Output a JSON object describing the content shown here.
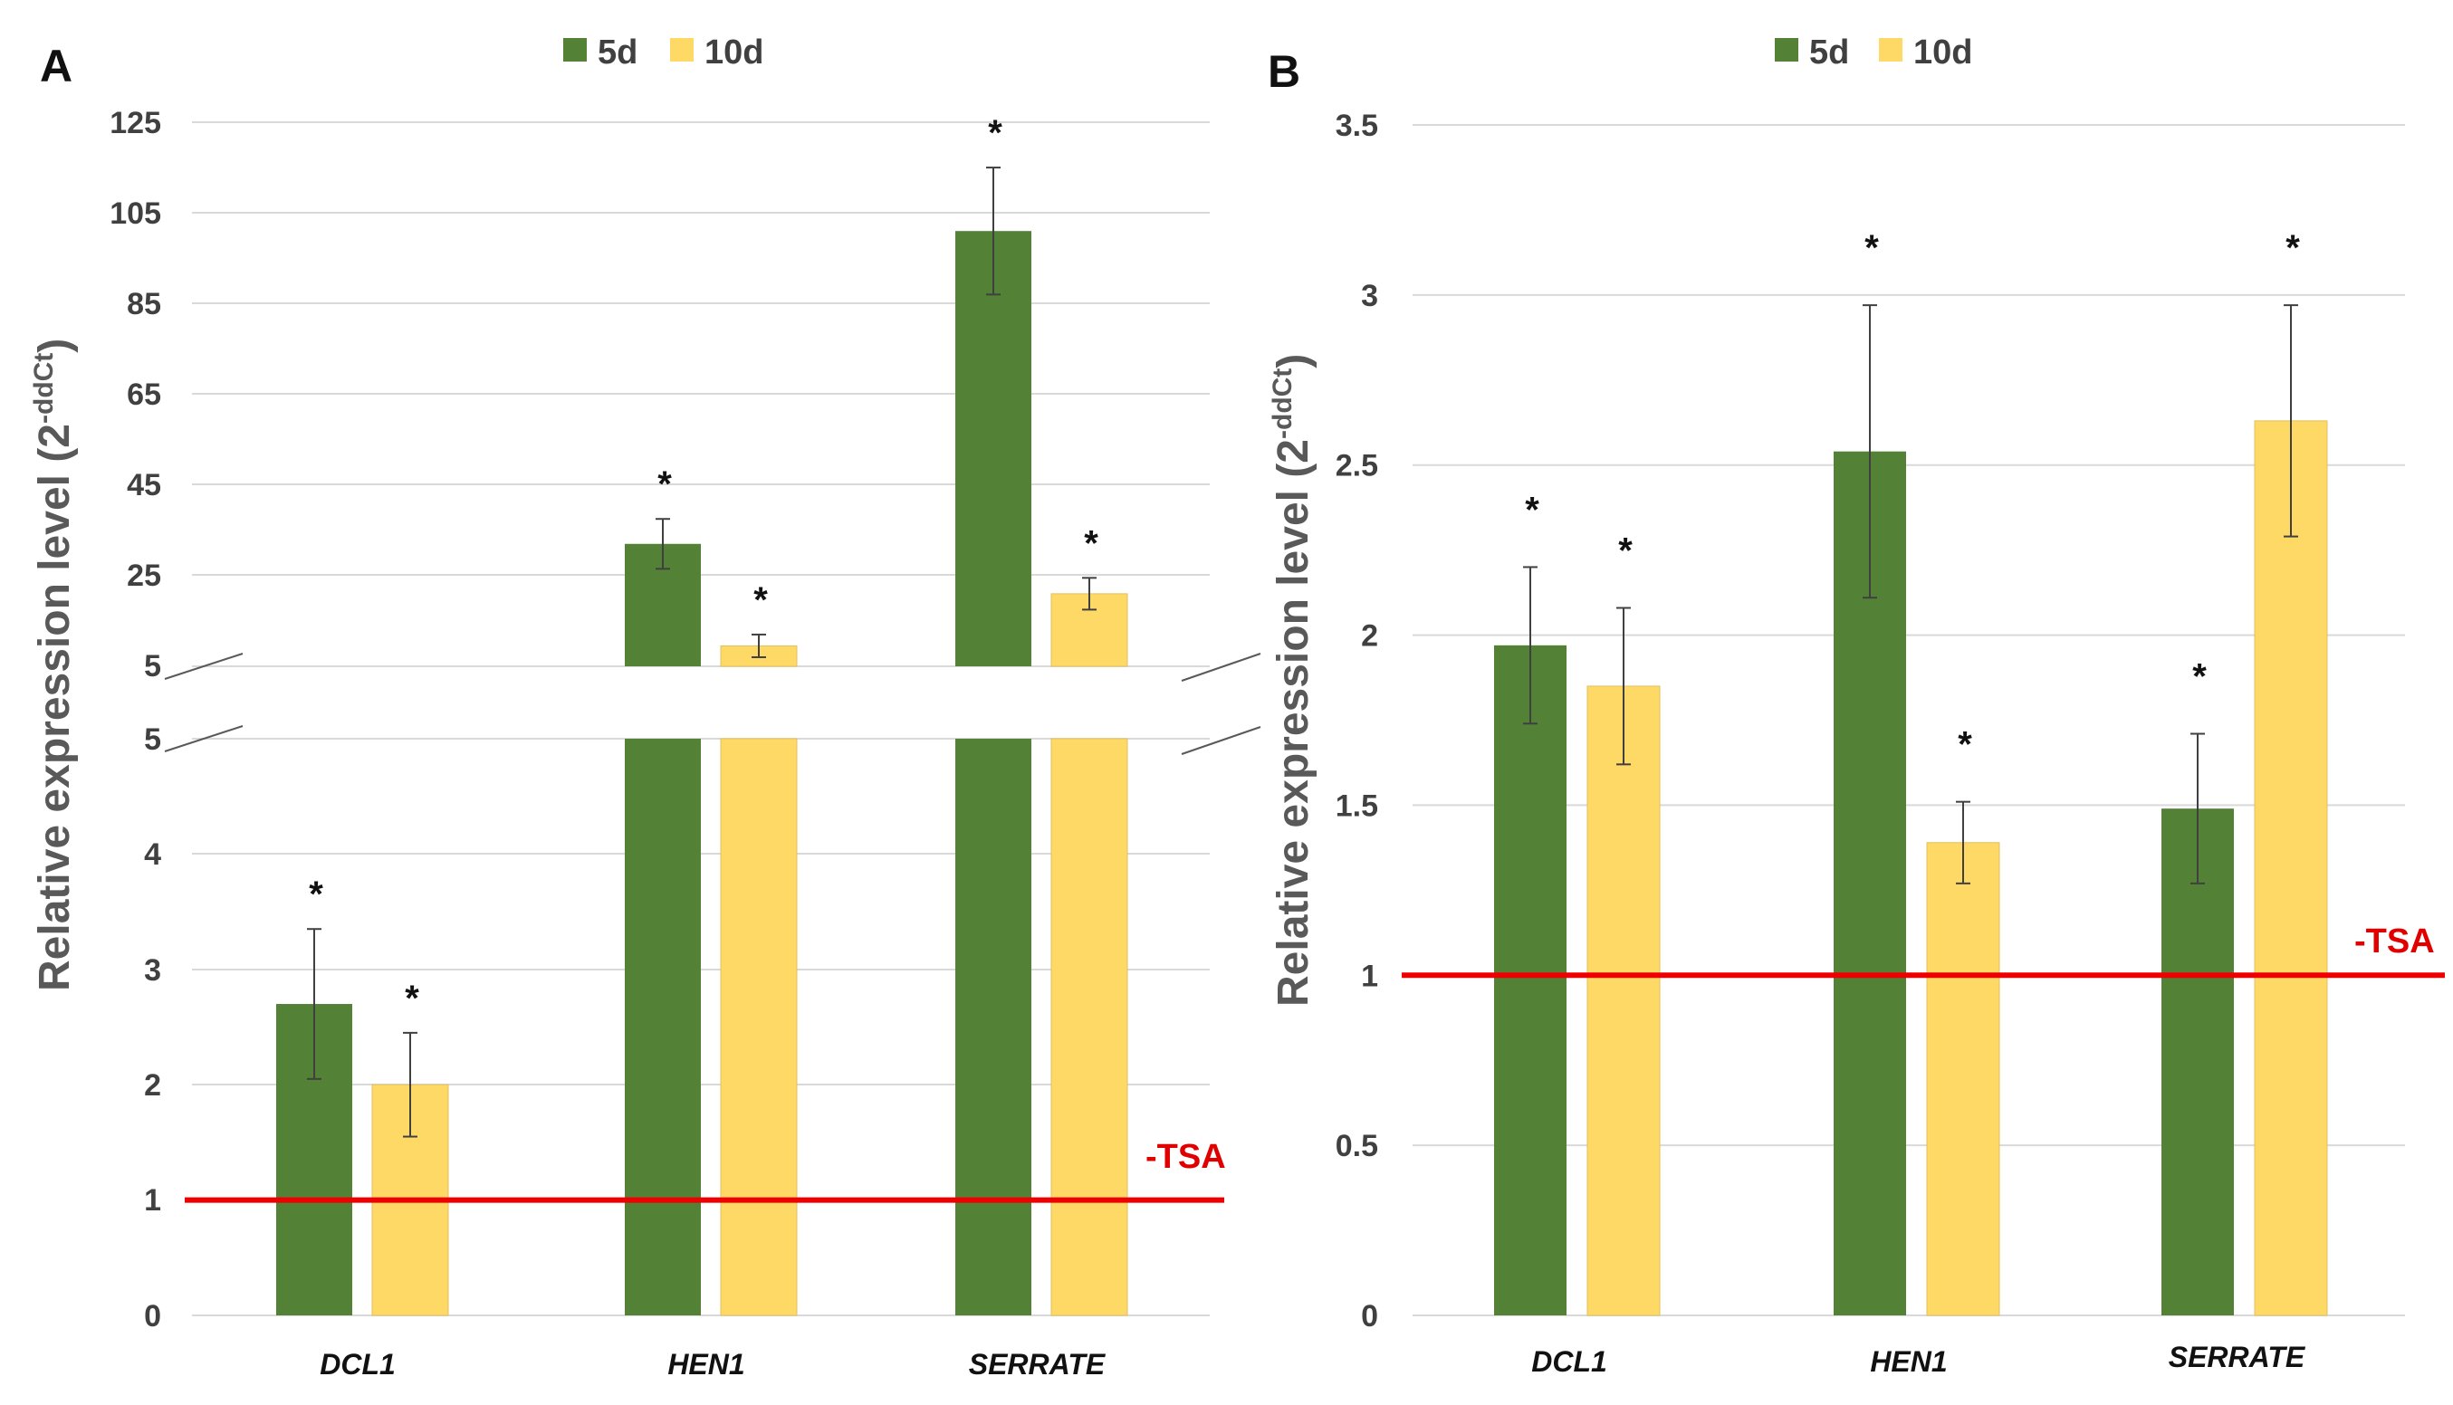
{
  "colors": {
    "green": "#538135",
    "yellow": "#ffd966",
    "tsa": "#ee0000"
  },
  "panels": [
    {
      "label": "A",
      "legend": [
        {
          "name": "5d",
          "color": "#538135"
        },
        {
          "name": "10d",
          "color": "#ffd966"
        }
      ],
      "ylabel": "Relative expression level (2",
      "ylabel_sup": "-ddCt",
      "ylabel_close": ")",
      "reference": {
        "label": "-TSA",
        "value": 1
      },
      "upper_ticks": [
        "5",
        "25",
        "45",
        "65",
        "85",
        "105",
        "125"
      ],
      "lower_ticks": [
        "0",
        "1",
        "2",
        "3",
        "4",
        "5"
      ],
      "categories": [
        "DCL1",
        "HEN1",
        "SERRATE"
      ]
    },
    {
      "label": "B",
      "legend": [
        {
          "name": "5d",
          "color": "#538135"
        },
        {
          "name": "10d",
          "color": "#ffd966"
        }
      ],
      "ylabel": "Relative expression level (2",
      "ylabel_sup": "-ddCt",
      "ylabel_close": ")",
      "reference": {
        "label": "-TSA",
        "value": 1
      },
      "ticks": [
        "0",
        "0.5",
        "1",
        "1.5",
        "2",
        "2.5",
        "3",
        "3.5"
      ],
      "categories": [
        "DCL1",
        "HEN1",
        "SERRATE"
      ]
    }
  ],
  "chart_data": [
    {
      "type": "bar",
      "title": "A",
      "xlabel": "",
      "ylabel": "Relative expression level (2^-ddCt)",
      "categories": [
        "DCL1",
        "HEN1",
        "SERRATE"
      ],
      "axis_break": {
        "lower_range": [
          0,
          5
        ],
        "upper_range": [
          5,
          125
        ]
      },
      "series": [
        {
          "name": "5d",
          "values": [
            2.7,
            32,
            101
          ],
          "errors": [
            0.65,
            5.5,
            14
          ],
          "significant": [
            true,
            true,
            true
          ]
        },
        {
          "name": "10d",
          "values": [
            2.0,
            9.5,
            21
          ],
          "errors": [
            0.45,
            2.5,
            3.5
          ],
          "significant": [
            true,
            true,
            true
          ]
        }
      ],
      "reference_line": {
        "label": "-TSA",
        "value": 1
      }
    },
    {
      "type": "bar",
      "title": "B",
      "xlabel": "",
      "ylabel": "Relative expression level (2^-ddCt)",
      "categories": [
        "DCL1",
        "HEN1",
        "SERRATE"
      ],
      "ylim": [
        0,
        3.5
      ],
      "series": [
        {
          "name": "5d",
          "values": [
            1.97,
            2.54,
            1.49
          ],
          "errors": [
            0.23,
            0.43,
            0.22
          ],
          "significant": [
            true,
            true,
            true
          ]
        },
        {
          "name": "10d",
          "values": [
            1.85,
            1.39,
            2.63
          ],
          "errors": [
            0.23,
            0.12,
            0.34
          ],
          "significant": [
            true,
            true,
            true
          ]
        }
      ],
      "reference_line": {
        "label": "-TSA",
        "value": 1
      }
    }
  ]
}
